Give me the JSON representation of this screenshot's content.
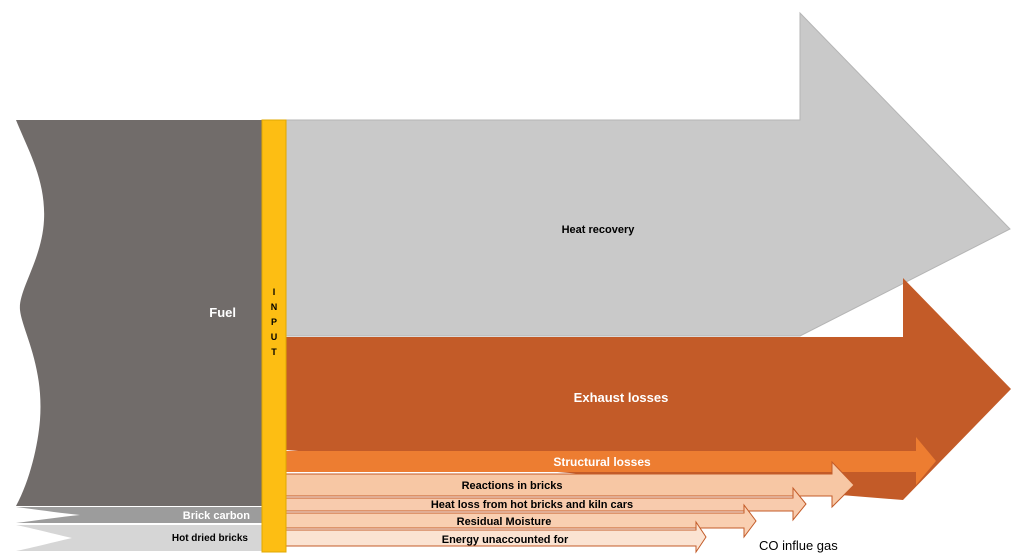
{
  "diagram": {
    "input_label_letters": [
      "I",
      "N",
      "P",
      "U",
      "T"
    ],
    "inputs": [
      {
        "label": "Fuel",
        "color": "#716C6A"
      },
      {
        "label": "Brick carbon",
        "color": "#9C9C9C"
      },
      {
        "label": "Hot dried bricks",
        "color": "#D6D6D6"
      }
    ],
    "input_bar_color": "#FDBE13",
    "outputs": [
      {
        "label": "Heat recovery",
        "color": "#C9C9C9"
      },
      {
        "label": "Exhaust losses",
        "color": "#C35B28"
      },
      {
        "label": "Structural losses",
        "color": "#ED7D31"
      },
      {
        "label": "Reactions in bricks",
        "color": "#F7C7A4"
      },
      {
        "label": "Heat loss from hot bricks and kiln cars",
        "color": "#F8CBAD"
      },
      {
        "label": "Residual Moisture",
        "color": "#F9CFB1"
      },
      {
        "label": "Energy unaccounted for",
        "color": "#FBE3D2"
      },
      {
        "label": "CO influe gas",
        "color": "#FFFFFF"
      }
    ]
  }
}
